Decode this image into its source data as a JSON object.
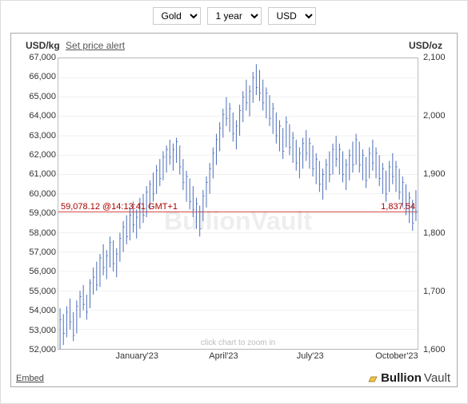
{
  "controls": {
    "metal": "Gold",
    "range": "1 year",
    "currency": "USD"
  },
  "header": {
    "left_axis_label": "USD/kg",
    "alert_link": "Set price alert",
    "right_axis_label": "USD/oz"
  },
  "footer": {
    "embed": "Embed",
    "brand_main": "Bullion",
    "brand_sub": "Vault",
    "watermark": "BullionVault",
    "zoom_hint": "click chart to zoom in"
  },
  "chart": {
    "type": "ohlc",
    "left_axis": {
      "min": 52000,
      "max": 67000,
      "step": 1000,
      "ticks": [
        52000,
        53000,
        54000,
        55000,
        56000,
        57000,
        58000,
        59000,
        60000,
        61000,
        62000,
        63000,
        64000,
        65000,
        66000,
        67000
      ]
    },
    "right_axis": {
      "min": 1600,
      "max": 2100,
      "step": 100,
      "ticks": [
        1600,
        1700,
        1800,
        1900,
        2000,
        2100
      ]
    },
    "x_axis": {
      "labels": [
        {
          "pos": 0.22,
          "text": "January'23"
        },
        {
          "pos": 0.46,
          "text": "April'23"
        },
        {
          "pos": 0.7,
          "text": "July'23"
        },
        {
          "pos": 0.94,
          "text": "October'23"
        }
      ]
    },
    "current": {
      "left_value": 59078.12,
      "left_label": "59,078.12 @14:13:41 GMT+1",
      "right_value": 1837.54,
      "right_label": "1,837.54",
      "line_color": "#cc0000"
    },
    "colors": {
      "series": "#4a6db8",
      "grid": "#dddddd",
      "border": "#bbbbbb",
      "background": "#ffffff"
    },
    "data_hlc": [
      [
        54100,
        52000,
        53500
      ],
      [
        53800,
        52200,
        52800
      ],
      [
        54200,
        52600,
        53900
      ],
      [
        54600,
        53000,
        53400
      ],
      [
        53900,
        52400,
        52700
      ],
      [
        54500,
        52800,
        54200
      ],
      [
        55000,
        53600,
        54700
      ],
      [
        55300,
        54000,
        54300
      ],
      [
        54800,
        53500,
        53900
      ],
      [
        55600,
        54100,
        55400
      ],
      [
        56200,
        54800,
        55700
      ],
      [
        56500,
        55000,
        55300
      ],
      [
        56900,
        55200,
        56700
      ],
      [
        57400,
        55800,
        56200
      ],
      [
        57100,
        55600,
        56800
      ],
      [
        57800,
        56200,
        57500
      ],
      [
        57600,
        56000,
        56400
      ],
      [
        57200,
        55700,
        56900
      ],
      [
        58000,
        56500,
        57700
      ],
      [
        58600,
        57000,
        58300
      ],
      [
        58900,
        57400,
        57800
      ],
      [
        59300,
        57600,
        58900
      ],
      [
        59600,
        58000,
        58400
      ],
      [
        59200,
        57700,
        58800
      ],
      [
        59800,
        58200,
        59500
      ],
      [
        60000,
        58500,
        58900
      ],
      [
        60400,
        58800,
        60100
      ],
      [
        60700,
        59200,
        60500
      ],
      [
        61100,
        59600,
        60000
      ],
      [
        61500,
        60000,
        61200
      ],
      [
        61800,
        60400,
        60800
      ],
      [
        62200,
        60700,
        61900
      ],
      [
        62500,
        61100,
        62300
      ],
      [
        62800,
        61500,
        61900
      ],
      [
        62600,
        61200,
        62300
      ],
      [
        62900,
        61600,
        62700
      ],
      [
        62500,
        61000,
        61400
      ],
      [
        61800,
        60200,
        60600
      ],
      [
        61200,
        59600,
        60900
      ],
      [
        60800,
        59200,
        59600
      ],
      [
        60400,
        58800,
        59200
      ],
      [
        59800,
        58200,
        59500
      ],
      [
        59400,
        57800,
        58200
      ],
      [
        60200,
        58600,
        59900
      ],
      [
        60900,
        59300,
        60600
      ],
      [
        61600,
        60000,
        61300
      ],
      [
        62400,
        60800,
        62100
      ],
      [
        63100,
        61500,
        62800
      ],
      [
        63700,
        62200,
        63400
      ],
      [
        64400,
        62900,
        64100
      ],
      [
        65000,
        63500,
        63900
      ],
      [
        64700,
        63200,
        64400
      ],
      [
        64200,
        62700,
        63100
      ],
      [
        63800,
        62300,
        63500
      ],
      [
        64600,
        63000,
        64300
      ],
      [
        65300,
        63700,
        65000
      ],
      [
        65900,
        64300,
        64700
      ],
      [
        65600,
        64000,
        65300
      ],
      [
        66300,
        64700,
        66000
      ],
      [
        66700,
        65100,
        65500
      ],
      [
        66400,
        64800,
        65200
      ],
      [
        65900,
        64300,
        64700
      ],
      [
        65500,
        63900,
        65200
      ],
      [
        65100,
        63500,
        63900
      ],
      [
        64700,
        63100,
        64400
      ],
      [
        64200,
        62600,
        63000
      ],
      [
        63800,
        62200,
        63500
      ],
      [
        63400,
        61800,
        62200
      ],
      [
        64000,
        62400,
        63700
      ],
      [
        63600,
        62000,
        62400
      ],
      [
        63200,
        61600,
        62900
      ],
      [
        62800,
        61200,
        61600
      ],
      [
        62400,
        60800,
        62100
      ],
      [
        62900,
        61300,
        62600
      ],
      [
        63300,
        61700,
        62100
      ],
      [
        62900,
        61300,
        62600
      ],
      [
        62500,
        60900,
        61300
      ],
      [
        62100,
        60500,
        61800
      ],
      [
        61700,
        60100,
        60500
      ],
      [
        61300,
        59700,
        61000
      ],
      [
        61800,
        60200,
        61500
      ],
      [
        62200,
        60600,
        61000
      ],
      [
        62600,
        61000,
        62300
      ],
      [
        63000,
        61400,
        61800
      ],
      [
        62600,
        61000,
        62300
      ],
      [
        62200,
        60600,
        61000
      ],
      [
        61800,
        60200,
        61500
      ],
      [
        62300,
        60700,
        62000
      ],
      [
        62700,
        61100,
        61500
      ],
      [
        63100,
        61500,
        62800
      ],
      [
        62700,
        61100,
        61500
      ],
      [
        62300,
        60700,
        62000
      ],
      [
        61900,
        60300,
        60700
      ],
      [
        62400,
        60800,
        62100
      ],
      [
        62800,
        61200,
        61600
      ],
      [
        62400,
        60800,
        62100
      ],
      [
        62000,
        60400,
        60800
      ],
      [
        61600,
        60000,
        61300
      ],
      [
        61200,
        59600,
        60000
      ],
      [
        61700,
        60100,
        61400
      ],
      [
        62100,
        60500,
        60900
      ],
      [
        61700,
        60100,
        61400
      ],
      [
        61300,
        59700,
        60100
      ],
      [
        60900,
        59300,
        60600
      ],
      [
        60500,
        58900,
        59300
      ],
      [
        60100,
        58500,
        59800
      ],
      [
        59700,
        58100,
        58500
      ],
      [
        60200,
        58600,
        59078
      ]
    ]
  }
}
